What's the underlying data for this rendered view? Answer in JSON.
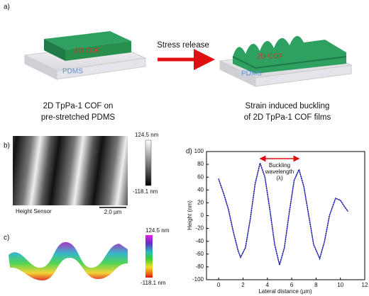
{
  "panel_a": {
    "label": "a)",
    "arrow_label": "Stress release",
    "film_label_left": "2D COF",
    "substrate_label_left": "PDMS",
    "film_label_right": "2D COF",
    "substrate_label_right": "PDMS",
    "caption_left": [
      "2D TpPa-1 COF on",
      "pre-stretched PDMS"
    ],
    "caption_right": [
      "Strain induced buckling",
      "of 2D TpPa-1 COF films"
    ]
  },
  "panel_b": {
    "label": "b)",
    "scale_max": "124.5 nm",
    "scale_min": "-118.1 nm",
    "image_label": "Height Sensor",
    "scale_bar": "2.0 µm"
  },
  "panel_c": {
    "label": "c)",
    "scale_max": "124.5 nm",
    "scale_min": "-118.1 nm"
  },
  "chart_data": {
    "type": "line",
    "label": "d)",
    "x_label": "Lateral distance (µm)",
    "y_label": "Height (nm)",
    "annotation": [
      "Buckling",
      "wavelength",
      "(λ)"
    ],
    "color": "#2020b0",
    "x": [
      0,
      0.4,
      0.8,
      1.2,
      1.6,
      1.8,
      2.2,
      2.6,
      3.0,
      3.4,
      3.8,
      4.2,
      4.6,
      5.0,
      5.4,
      5.8,
      6.2,
      6.6,
      7.0,
      7.4,
      7.8,
      8.3,
      8.7,
      9.1,
      9.6,
      10.0,
      10.3,
      10.6
    ],
    "values": [
      57,
      35,
      10,
      -25,
      -55,
      -65,
      -50,
      -5,
      50,
      82,
      60,
      10,
      -45,
      -77,
      -50,
      5,
      55,
      72,
      45,
      0,
      -45,
      -67,
      -40,
      0,
      27,
      24,
      15,
      7
    ],
    "xlim": [
      -1,
      12
    ],
    "xticks": [
      0,
      2,
      4,
      6,
      8,
      10,
      12
    ],
    "ylim": [
      -100,
      100
    ],
    "yticks": [
      -100,
      -80,
      -60,
      -40,
      -20,
      0,
      20,
      40,
      60,
      80,
      100
    ]
  }
}
